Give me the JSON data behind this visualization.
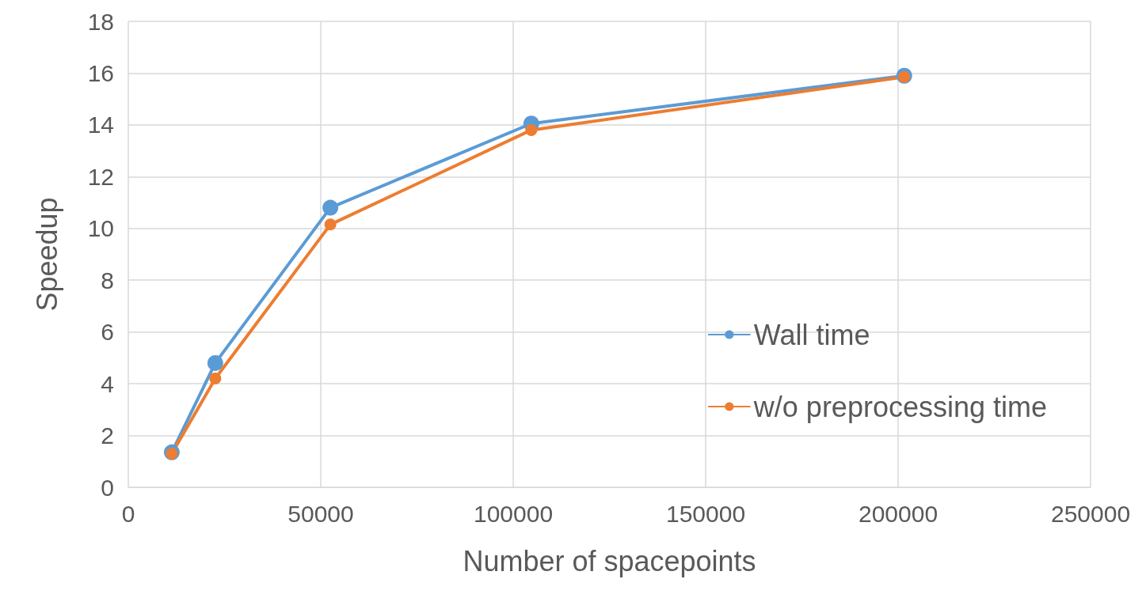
{
  "chart_data": {
    "type": "line",
    "xlabel": "Number of spacepoints",
    "ylabel": "Speedup",
    "x": [
      11300,
      22600,
      52500,
      104700,
      201600
    ],
    "series": [
      {
        "name": "Wall time",
        "color": "#5b9bd5",
        "values": [
          1.35,
          4.8,
          10.8,
          14.05,
          15.9
        ]
      },
      {
        "name": "w/o preprocessing time",
        "color": "#ed7d31",
        "values": [
          1.3,
          4.2,
          10.15,
          13.8,
          15.85
        ]
      }
    ],
    "xlim": [
      0,
      250000
    ],
    "xticks": [
      0,
      50000,
      100000,
      150000,
      200000,
      250000
    ],
    "ylim": [
      0,
      18
    ],
    "yticks": [
      0,
      2,
      4,
      6,
      8,
      10,
      12,
      14,
      16,
      18
    ],
    "grid": true,
    "legend": "right",
    "marker": "circle",
    "line_style": "solid"
  }
}
